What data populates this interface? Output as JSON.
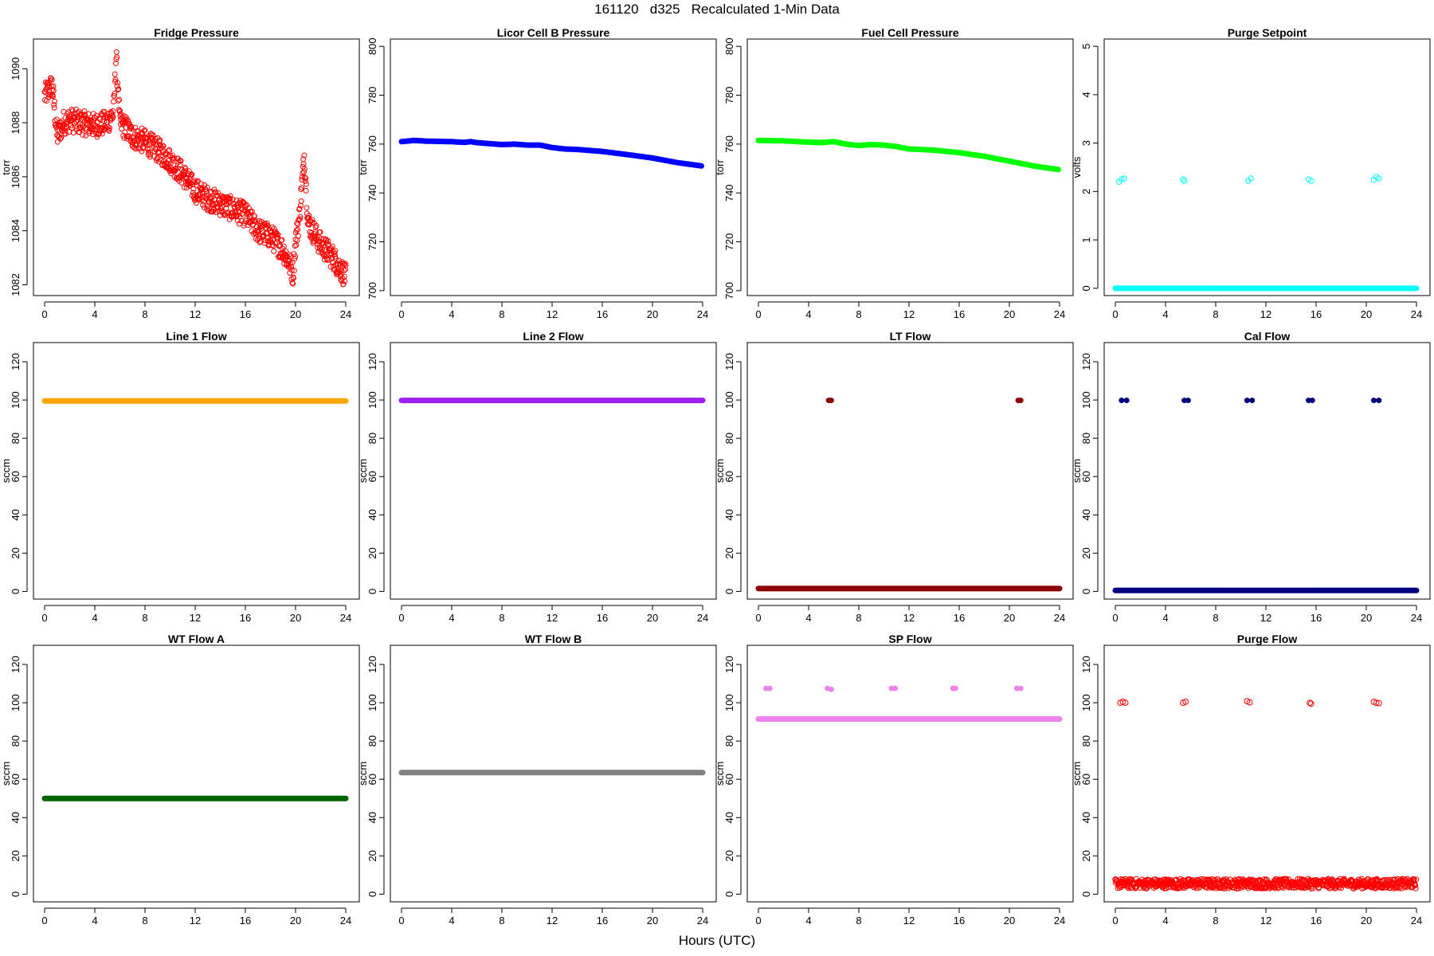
{
  "page_title": "161120   d325   Recalculated 1-Min Data",
  "x_axis_title": "Hours (UTC)",
  "colors": {
    "red": "#ff0000",
    "blue": "#0000ff",
    "green": "#00ff00",
    "cyan": "#00ffff",
    "orange": "#ffa500",
    "purple": "#a020f0",
    "darkred": "#8b0000",
    "navy": "#000080",
    "darkgreen": "#006400",
    "gray": "#808080",
    "violet": "#ee82ee"
  },
  "chart_data": [
    {
      "title": "Fridge Pressure",
      "type": "scatter",
      "marker": "open-circle",
      "color": "#ff0000",
      "xlabel": "",
      "ylabel": "torr",
      "xlim": [
        0,
        24
      ],
      "ylim": [
        1081.6,
        1091.1
      ],
      "xticks": [
        "0",
        "4",
        "8",
        "12",
        "16",
        "20",
        "24"
      ],
      "yticks": [
        "1082",
        "1084",
        "1086",
        "1088",
        "1090"
      ],
      "series": [
        {
          "x": [
            0,
            0.3,
            0.6,
            0.8,
            1,
            1.5,
            2,
            3,
            4,
            5,
            5.5,
            5.7,
            6,
            6.5,
            7,
            8,
            9,
            10,
            11,
            12,
            13,
            14,
            15,
            16,
            17,
            18,
            19,
            19.5,
            19.8,
            20,
            20.3,
            20.7,
            21,
            22,
            23,
            24
          ],
          "y": [
            1089,
            1089.2,
            1089.4,
            1088.5,
            1087.5,
            1088,
            1088.1,
            1088,
            1087.9,
            1088,
            1088.4,
            1090.5,
            1088,
            1087.8,
            1087.5,
            1087.3,
            1087,
            1086.6,
            1086.1,
            1085.5,
            1085.2,
            1085,
            1084.8,
            1084.6,
            1084,
            1083.8,
            1083.3,
            1082.8,
            1082.4,
            1083.6,
            1084.5,
            1086.8,
            1084.3,
            1083.5,
            1083,
            1082.3
          ]
        }
      ]
    },
    {
      "title": "Licor Cell B Pressure",
      "type": "scatter",
      "marker": "filled-dot",
      "color": "#0000ff",
      "xlabel": "",
      "ylabel": "torr",
      "xlim": [
        0,
        24
      ],
      "ylim": [
        698,
        803
      ],
      "xticks": [
        "0",
        "4",
        "8",
        "12",
        "16",
        "20",
        "24"
      ],
      "yticks": [
        "700",
        "720",
        "740",
        "760",
        "780",
        "800"
      ],
      "series": [
        {
          "x": [
            0,
            1,
            2,
            4,
            5,
            5.5,
            6,
            8,
            9,
            10,
            11,
            12,
            13,
            14,
            16,
            18,
            20,
            22,
            24
          ],
          "y": [
            761,
            761.5,
            761.2,
            761,
            760.7,
            761,
            760.6,
            759.8,
            760,
            759.6,
            759.6,
            758.6,
            758,
            757.8,
            757,
            755.7,
            754.3,
            752.4,
            751
          ]
        }
      ]
    },
    {
      "title": "Fuel Cell Pressure",
      "type": "scatter",
      "marker": "filled-dot",
      "color": "#00ff00",
      "xlabel": "",
      "ylabel": "torr",
      "xlim": [
        0,
        24
      ],
      "ylim": [
        698,
        803
      ],
      "xticks": [
        "0",
        "4",
        "8",
        "12",
        "16",
        "20",
        "24"
      ],
      "yticks": [
        "700",
        "720",
        "740",
        "760",
        "780",
        "800"
      ],
      "series": [
        {
          "x": [
            0,
            2,
            4,
            5,
            6,
            7,
            8,
            9,
            10,
            11,
            12,
            13,
            14,
            16,
            18,
            20,
            22,
            24
          ],
          "y": [
            761.5,
            761.3,
            760.8,
            760.6,
            761,
            760,
            759.4,
            759.8,
            759.6,
            759,
            758,
            757.8,
            757.5,
            756.5,
            755,
            753,
            751,
            749.5
          ]
        }
      ]
    },
    {
      "title": "Purge Setpoint",
      "type": "scatter",
      "marker": "open-circle",
      "color": "#00ffff",
      "xlabel": "",
      "ylabel": "volts",
      "xlim": [
        0,
        24
      ],
      "ylim": [
        -0.15,
        5.15
      ],
      "xticks": [
        "0",
        "4",
        "8",
        "12",
        "16",
        "20",
        "24"
      ],
      "yticks": [
        "0",
        "1",
        "2",
        "3",
        "4",
        "5"
      ],
      "baseline": 0,
      "series": [
        {
          "x": [
            0.3,
            0.5,
            0.7,
            5.4,
            5.5,
            10.6,
            10.8,
            15.4,
            15.6,
            20.6,
            20.8,
            21
          ],
          "y": [
            2.2,
            2.25,
            2.27,
            2.25,
            2.22,
            2.22,
            2.27,
            2.25,
            2.22,
            2.24,
            2.3,
            2.27
          ]
        }
      ]
    },
    {
      "title": "Line 1 Flow",
      "type": "scatter",
      "marker": "filled-dot",
      "color": "#ffa500",
      "xlabel": "",
      "ylabel": "sccm",
      "xlim": [
        0,
        24
      ],
      "ylim": [
        -4,
        130
      ],
      "xticks": [
        "0",
        "4",
        "8",
        "12",
        "16",
        "20",
        "24"
      ],
      "yticks": [
        "0",
        "20",
        "40",
        "60",
        "80",
        "100",
        "120"
      ],
      "series": [
        {
          "x": [
            0,
            24
          ],
          "y": [
            99.5,
            99.5
          ]
        }
      ]
    },
    {
      "title": "Line 2 Flow",
      "type": "scatter",
      "marker": "filled-dot",
      "color": "#a020f0",
      "xlabel": "",
      "ylabel": "sccm",
      "xlim": [
        0,
        24
      ],
      "ylim": [
        -4,
        130
      ],
      "xticks": [
        "0",
        "4",
        "8",
        "12",
        "16",
        "20",
        "24"
      ],
      "yticks": [
        "0",
        "20",
        "40",
        "60",
        "80",
        "100",
        "120"
      ],
      "series": [
        {
          "x": [
            0,
            24
          ],
          "y": [
            99.8,
            99.8
          ]
        }
      ]
    },
    {
      "title": "LT Flow",
      "type": "scatter",
      "marker": "filled-dot",
      "color": "#8b0000",
      "xlabel": "",
      "ylabel": "sccm",
      "xlim": [
        0,
        24
      ],
      "ylim": [
        -4,
        130
      ],
      "xticks": [
        "0",
        "4",
        "8",
        "12",
        "16",
        "20",
        "24"
      ],
      "yticks": [
        "0",
        "20",
        "40",
        "60",
        "80",
        "100",
        "120"
      ],
      "baseline": 1.5,
      "series": [
        {
          "x": [
            5.6,
            5.8,
            20.7,
            20.9
          ],
          "y": [
            99.8,
            99.8,
            99.8,
            99.8
          ]
        }
      ]
    },
    {
      "title": "Cal Flow",
      "type": "scatter",
      "marker": "filled-dot",
      "color": "#000080",
      "xlabel": "",
      "ylabel": "sccm",
      "xlim": [
        0,
        24
      ],
      "ylim": [
        -4,
        130
      ],
      "xticks": [
        "0",
        "4",
        "8",
        "12",
        "16",
        "20",
        "24"
      ],
      "yticks": [
        "0",
        "20",
        "40",
        "60",
        "80",
        "100",
        "120"
      ],
      "baseline": 0.5,
      "series": [
        {
          "x": [
            0.5,
            0.9,
            5.5,
            5.8,
            10.5,
            10.9,
            15.4,
            15.7,
            20.6,
            21
          ],
          "y": [
            99.8,
            99.8,
            99.8,
            99.8,
            99.8,
            99.8,
            99.8,
            99.8,
            99.8,
            99.8
          ]
        }
      ]
    },
    {
      "title": "WT Flow A",
      "type": "scatter",
      "marker": "filled-dot",
      "color": "#006400",
      "xlabel": "",
      "ylabel": "sccm",
      "xlim": [
        0,
        24
      ],
      "ylim": [
        -4,
        130
      ],
      "xticks": [
        "0",
        "4",
        "8",
        "12",
        "16",
        "20",
        "24"
      ],
      "yticks": [
        "0",
        "20",
        "40",
        "60",
        "80",
        "100",
        "120"
      ],
      "series": [
        {
          "x": [
            0,
            24
          ],
          "y": [
            50,
            50
          ]
        }
      ]
    },
    {
      "title": "WT Flow B",
      "type": "scatter",
      "marker": "filled-dot",
      "color": "#808080",
      "xlabel": "",
      "ylabel": "sccm",
      "xlim": [
        0,
        24
      ],
      "ylim": [
        -4,
        130
      ],
      "xticks": [
        "0",
        "4",
        "8",
        "12",
        "16",
        "20",
        "24"
      ],
      "yticks": [
        "0",
        "20",
        "40",
        "60",
        "80",
        "100",
        "120"
      ],
      "series": [
        {
          "x": [
            0,
            24
          ],
          "y": [
            63.5,
            63.5
          ]
        }
      ]
    },
    {
      "title": "SP Flow",
      "type": "scatter",
      "marker": "filled-dot",
      "color": "#ee82ee",
      "xlabel": "",
      "ylabel": "sccm",
      "xlim": [
        0,
        24
      ],
      "ylim": [
        -4,
        130
      ],
      "xticks": [
        "0",
        "4",
        "8",
        "12",
        "16",
        "20",
        "24"
      ],
      "yticks": [
        "0",
        "20",
        "40",
        "60",
        "80",
        "100",
        "120"
      ],
      "baseline": 91.5,
      "series": [
        {
          "x": [
            0.6,
            0.9,
            5.5,
            5.8,
            10.6,
            10.9,
            15.5,
            15.7,
            20.6,
            20.9
          ],
          "y": [
            107.5,
            107.5,
            107.5,
            107,
            107.5,
            107.5,
            107.5,
            107.5,
            107.5,
            107.5
          ]
        }
      ]
    },
    {
      "title": "Purge Flow",
      "type": "scatter",
      "marker": "open-circle",
      "color": "#ff0000",
      "xlabel": "",
      "ylabel": "sccm",
      "xlim": [
        0,
        24
      ],
      "ylim": [
        -4,
        130
      ],
      "xticks": [
        "0",
        "4",
        "8",
        "12",
        "16",
        "20",
        "24"
      ],
      "yticks": [
        "0",
        "20",
        "40",
        "60",
        "80",
        "100",
        "120"
      ],
      "baseline_noise": [
        5.5,
        2.5
      ],
      "series": [
        {
          "x": [
            0.4,
            0.6,
            0.8,
            5.4,
            5.6,
            10.5,
            10.7,
            15.5,
            15.6,
            20.6,
            20.8,
            21
          ],
          "y": [
            100,
            100.5,
            100,
            100,
            100.5,
            100.8,
            100.2,
            100,
            99.5,
            100.5,
            100,
            99.8
          ]
        }
      ]
    }
  ]
}
